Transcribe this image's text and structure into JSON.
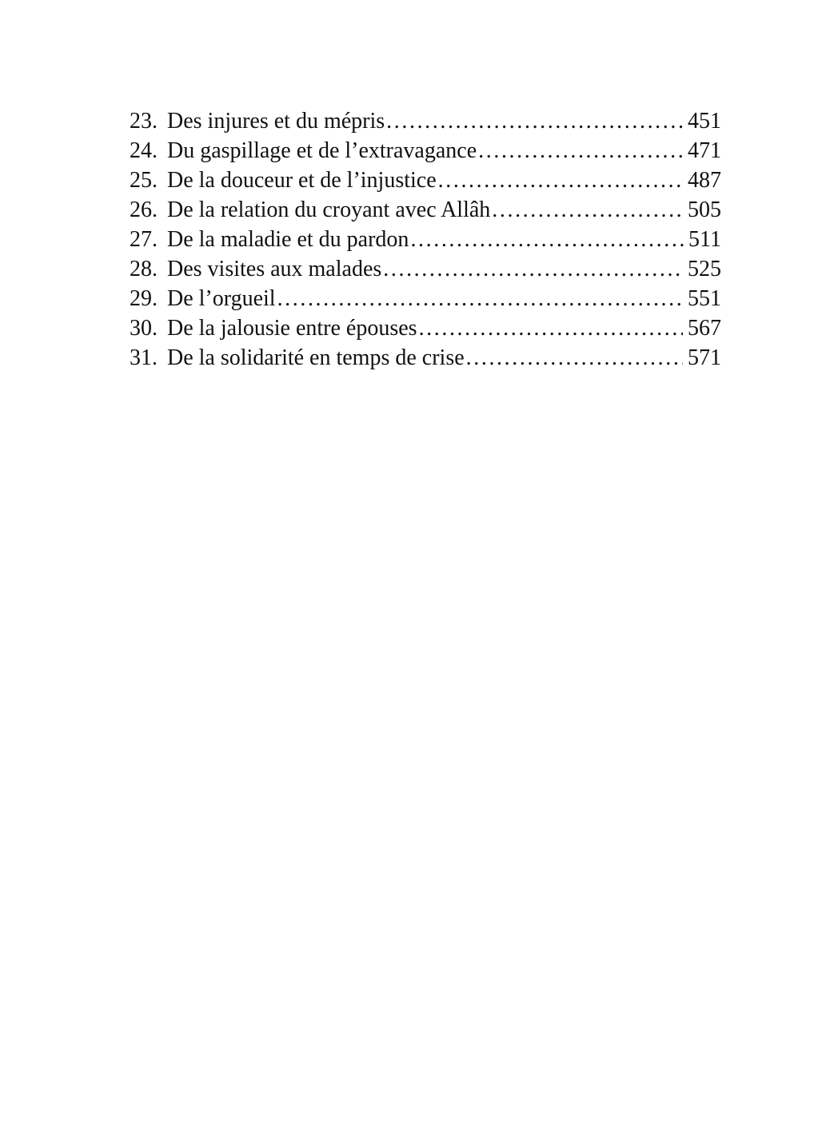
{
  "colors": {
    "background": "#ffffff",
    "ink": "#111111"
  },
  "toc": {
    "entries": [
      {
        "num": "23.",
        "title": "Des injures et du mépris",
        "page": "451"
      },
      {
        "num": "24.",
        "title": "Du gaspillage et de l’extravagance",
        "page": "471"
      },
      {
        "num": "25.",
        "title": "De la douceur et de l’injustice",
        "page": "487"
      },
      {
        "num": "26.",
        "title": "De la relation du croyant avec Allâh",
        "page": "505"
      },
      {
        "num": "27.",
        "title": "De la maladie et du pardon",
        "page": "511"
      },
      {
        "num": "28.",
        "title": "Des visites aux malades",
        "page": "525"
      },
      {
        "num": "29.",
        "title": "De l’orgueil",
        "page": "551"
      },
      {
        "num": "30.",
        "title": "De la jalousie entre épouses",
        "page": "567"
      },
      {
        "num": "31.",
        "title": "De la solidarité en temps de crise",
        "page": "571"
      }
    ]
  }
}
